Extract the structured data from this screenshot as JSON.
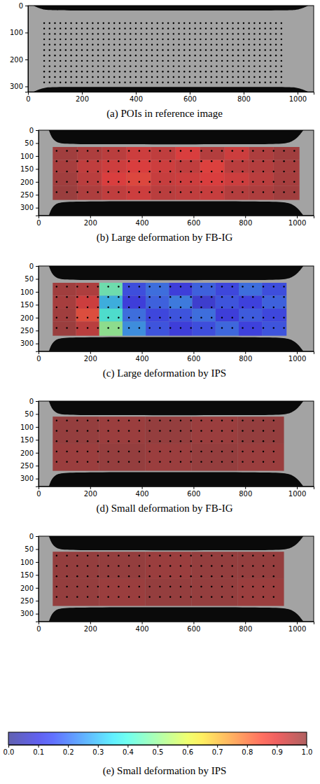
{
  "chart_data": [
    {
      "type": "image",
      "caption": "(a) POIs in reference image",
      "xlim": [
        0,
        1060
      ],
      "ylim": [
        0,
        320
      ],
      "xticks": [
        0,
        200,
        400,
        600,
        800,
        1000
      ],
      "yticks": [
        0,
        100,
        200,
        300
      ],
      "poi_x": [
        60,
        80,
        100,
        120,
        140,
        160,
        180,
        200,
        220,
        240,
        260,
        280,
        300,
        320,
        340,
        360,
        380,
        400,
        420,
        440,
        460,
        480,
        500,
        520,
        540,
        560,
        580,
        600,
        620,
        640,
        660,
        680,
        700,
        720,
        740,
        760,
        780,
        800,
        820,
        840,
        860,
        880,
        900,
        920,
        940
      ],
      "poi_y": [
        65,
        85,
        105,
        125,
        145,
        165,
        185,
        205,
        225,
        245,
        265,
        285
      ]
    },
    {
      "type": "heatmap",
      "caption": "(b) Large deformation by FB-IG",
      "xlim": [
        0,
        1065
      ],
      "ylim": [
        0,
        330
      ],
      "xticks": [
        0,
        200,
        400,
        600,
        800,
        1000
      ],
      "yticks": [
        0,
        50,
        100,
        150,
        200,
        250,
        300
      ],
      "cell_x": [
        55,
        150,
        245,
        340,
        435,
        530,
        625,
        720,
        815,
        910,
        1010
      ],
      "cell_y": [
        65,
        115,
        165,
        215,
        270
      ],
      "cells": [
        [
          0.97,
          0.95,
          0.93,
          0.9,
          0.92,
          0.88,
          0.94,
          0.9,
          0.95,
          0.97
        ],
        [
          0.96,
          0.92,
          0.9,
          0.88,
          0.9,
          0.92,
          0.87,
          0.93,
          0.94,
          0.96
        ],
        [
          0.97,
          0.93,
          0.88,
          0.86,
          0.91,
          0.9,
          0.88,
          0.9,
          0.93,
          0.96
        ],
        [
          0.98,
          0.95,
          0.92,
          0.9,
          0.93,
          0.92,
          0.91,
          0.94,
          0.95,
          0.97
        ]
      ],
      "poi_x": [
        70,
        110,
        150,
        190,
        230,
        270,
        310,
        350,
        390,
        430,
        470,
        510,
        550,
        590,
        630,
        670,
        710,
        750,
        790,
        830,
        870,
        910,
        950,
        990
      ],
      "poi_y": [
        80,
        120,
        160,
        200,
        240
      ]
    },
    {
      "type": "heatmap",
      "caption": "(c) Large deformation by IPS",
      "xlim": [
        0,
        1065
      ],
      "ylim": [
        0,
        330
      ],
      "xticks": [
        0,
        200,
        400,
        600,
        800,
        1000
      ],
      "yticks": [
        0,
        50,
        100,
        150,
        200,
        250,
        300
      ],
      "cell_x": [
        55,
        145,
        235,
        325,
        415,
        505,
        595,
        685,
        775,
        865,
        960
      ],
      "cell_y": [
        65,
        115,
        165,
        215,
        270
      ],
      "cells": [
        [
          0.97,
          0.95,
          0.45,
          0.15,
          0.2,
          0.12,
          0.18,
          0.14,
          0.2,
          0.15
        ],
        [
          0.96,
          0.9,
          0.3,
          0.12,
          0.18,
          0.22,
          0.1,
          0.16,
          0.13,
          0.18
        ],
        [
          0.97,
          0.85,
          0.4,
          0.2,
          0.14,
          0.16,
          0.2,
          0.12,
          0.17,
          0.14
        ],
        [
          0.98,
          0.93,
          0.5,
          0.25,
          0.16,
          0.12,
          0.15,
          0.19,
          0.13,
          0.16
        ]
      ],
      "poi_x": [
        70,
        110,
        150,
        190,
        230,
        270,
        310,
        350,
        390,
        430,
        470,
        510,
        550,
        590,
        630,
        670,
        710,
        750,
        790,
        830,
        870,
        910,
        950
      ],
      "poi_y": [
        80,
        120,
        160,
        200,
        240
      ]
    },
    {
      "type": "heatmap",
      "caption": "(d) Small deformation by FB-IG",
      "xlim": [
        0,
        1065
      ],
      "ylim": [
        0,
        330
      ],
      "xticks": [
        0,
        200,
        400,
        600,
        800,
        1000
      ],
      "yticks": [
        0,
        50,
        100,
        150,
        200,
        250,
        300
      ],
      "cell_x": [
        55,
        234,
        413,
        592,
        771,
        950
      ],
      "cell_y": [
        60,
        165,
        270
      ],
      "cells": [
        [
          0.99,
          0.98,
          0.99,
          0.98,
          0.99
        ],
        [
          0.98,
          0.99,
          0.98,
          0.99,
          0.98
        ]
      ],
      "poi_x": [
        70,
        110,
        150,
        190,
        230,
        270,
        310,
        350,
        390,
        430,
        470,
        510,
        550,
        590,
        630,
        670,
        710,
        750,
        790,
        830,
        870,
        910
      ],
      "poi_y": [
        75,
        115,
        155,
        195,
        235
      ]
    },
    {
      "type": "heatmap",
      "caption": "(e) Small deformation by IPS",
      "xlim": [
        0,
        1065
      ],
      "ylim": [
        0,
        330
      ],
      "xticks": [
        0,
        200,
        400,
        600,
        800,
        1000
      ],
      "yticks": [
        0,
        50,
        100,
        150,
        200,
        250,
        300
      ],
      "cell_x": [
        55,
        234,
        413,
        592,
        771,
        950
      ],
      "cell_y": [
        60,
        165,
        270
      ],
      "cells": [
        [
          0.99,
          0.99,
          0.98,
          0.99,
          0.99
        ],
        [
          0.99,
          0.98,
          0.99,
          0.99,
          0.98
        ]
      ],
      "poi_x": [
        70,
        110,
        150,
        190,
        230,
        270,
        310,
        350,
        390,
        430,
        470,
        510,
        550,
        590,
        630,
        670,
        710,
        750,
        790,
        830,
        870,
        910
      ],
      "poi_y": [
        75,
        115,
        155,
        195,
        235
      ]
    }
  ],
  "colorbar": {
    "range": [
      0,
      1
    ],
    "ticks": [
      {
        "value": 0,
        "label": "0.0"
      },
      {
        "value": 0.1,
        "label": "0.1"
      },
      {
        "value": 0.2,
        "label": "0.2"
      },
      {
        "value": 0.3,
        "label": "0.3"
      },
      {
        "value": 0.4,
        "label": "0.4"
      },
      {
        "value": 0.5,
        "label": "0.5"
      },
      {
        "value": 0.6,
        "label": "0.6"
      },
      {
        "value": 0.7,
        "label": "0.7"
      },
      {
        "value": 0.8,
        "label": "0.8"
      },
      {
        "value": 0.9,
        "label": "0.9"
      },
      {
        "value": 1,
        "label": "1.0"
      }
    ]
  }
}
